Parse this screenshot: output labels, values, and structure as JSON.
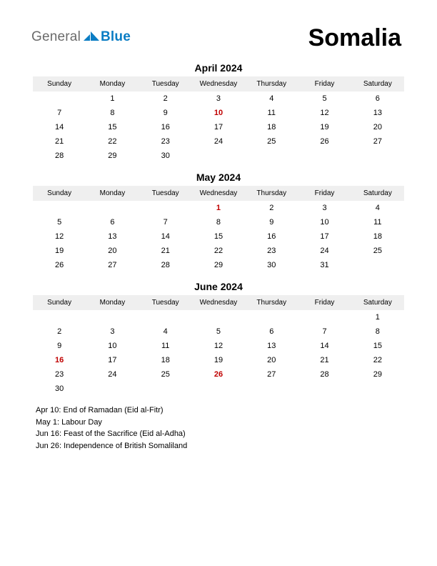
{
  "header": {
    "logo_general": "General",
    "logo_blue": "Blue",
    "country": "Somalia",
    "logo_color_gray": "#6b6b6b",
    "logo_color_blue": "#0b7dc4",
    "logo_arrow_color": "#0b7dc4"
  },
  "weekday_labels": [
    "Sunday",
    "Monday",
    "Tuesday",
    "Wednesday",
    "Thursday",
    "Friday",
    "Saturday"
  ],
  "months": [
    {
      "title": "April 2024",
      "weeks": [
        [
          {
            "d": ""
          },
          {
            "d": "1"
          },
          {
            "d": "2"
          },
          {
            "d": "3"
          },
          {
            "d": "4"
          },
          {
            "d": "5"
          },
          {
            "d": "6"
          }
        ],
        [
          {
            "d": "7"
          },
          {
            "d": "8"
          },
          {
            "d": "9"
          },
          {
            "d": "10",
            "h": true
          },
          {
            "d": "11"
          },
          {
            "d": "12"
          },
          {
            "d": "13"
          }
        ],
        [
          {
            "d": "14"
          },
          {
            "d": "15"
          },
          {
            "d": "16"
          },
          {
            "d": "17"
          },
          {
            "d": "18"
          },
          {
            "d": "19"
          },
          {
            "d": "20"
          }
        ],
        [
          {
            "d": "21"
          },
          {
            "d": "22"
          },
          {
            "d": "23"
          },
          {
            "d": "24"
          },
          {
            "d": "25"
          },
          {
            "d": "26"
          },
          {
            "d": "27"
          }
        ],
        [
          {
            "d": "28"
          },
          {
            "d": "29"
          },
          {
            "d": "30"
          },
          {
            "d": ""
          },
          {
            "d": ""
          },
          {
            "d": ""
          },
          {
            "d": ""
          }
        ]
      ]
    },
    {
      "title": "May 2024",
      "weeks": [
        [
          {
            "d": ""
          },
          {
            "d": ""
          },
          {
            "d": ""
          },
          {
            "d": "1",
            "h": true
          },
          {
            "d": "2"
          },
          {
            "d": "3"
          },
          {
            "d": "4"
          }
        ],
        [
          {
            "d": "5"
          },
          {
            "d": "6"
          },
          {
            "d": "7"
          },
          {
            "d": "8"
          },
          {
            "d": "9"
          },
          {
            "d": "10"
          },
          {
            "d": "11"
          }
        ],
        [
          {
            "d": "12"
          },
          {
            "d": "13"
          },
          {
            "d": "14"
          },
          {
            "d": "15"
          },
          {
            "d": "16"
          },
          {
            "d": "17"
          },
          {
            "d": "18"
          }
        ],
        [
          {
            "d": "19"
          },
          {
            "d": "20"
          },
          {
            "d": "21"
          },
          {
            "d": "22"
          },
          {
            "d": "23"
          },
          {
            "d": "24"
          },
          {
            "d": "25"
          }
        ],
        [
          {
            "d": "26"
          },
          {
            "d": "27"
          },
          {
            "d": "28"
          },
          {
            "d": "29"
          },
          {
            "d": "30"
          },
          {
            "d": "31"
          },
          {
            "d": ""
          }
        ]
      ]
    },
    {
      "title": "June 2024",
      "weeks": [
        [
          {
            "d": ""
          },
          {
            "d": ""
          },
          {
            "d": ""
          },
          {
            "d": ""
          },
          {
            "d": ""
          },
          {
            "d": ""
          },
          {
            "d": "1"
          }
        ],
        [
          {
            "d": "2"
          },
          {
            "d": "3"
          },
          {
            "d": "4"
          },
          {
            "d": "5"
          },
          {
            "d": "6"
          },
          {
            "d": "7"
          },
          {
            "d": "8"
          }
        ],
        [
          {
            "d": "9"
          },
          {
            "d": "10"
          },
          {
            "d": "11"
          },
          {
            "d": "12"
          },
          {
            "d": "13"
          },
          {
            "d": "14"
          },
          {
            "d": "15"
          }
        ],
        [
          {
            "d": "16",
            "h": true
          },
          {
            "d": "17"
          },
          {
            "d": "18"
          },
          {
            "d": "19"
          },
          {
            "d": "20"
          },
          {
            "d": "21"
          },
          {
            "d": "22"
          }
        ],
        [
          {
            "d": "23"
          },
          {
            "d": "24"
          },
          {
            "d": "25"
          },
          {
            "d": "26",
            "h": true
          },
          {
            "d": "27"
          },
          {
            "d": "28"
          },
          {
            "d": "29"
          }
        ],
        [
          {
            "d": "30"
          },
          {
            "d": ""
          },
          {
            "d": ""
          },
          {
            "d": ""
          },
          {
            "d": ""
          },
          {
            "d": ""
          },
          {
            "d": ""
          }
        ]
      ]
    }
  ],
  "holidays_list": [
    "Apr 10: End of Ramadan (Eid al-Fitr)",
    "May 1: Labour Day",
    "Jun 16: Feast of the Sacrifice (Eid al-Adha)",
    "Jun 26: Independence of British Somaliland"
  ],
  "style": {
    "header_bg": "#efefef",
    "holiday_color": "#c00000",
    "text_color": "#000000",
    "page_bg": "#ffffff",
    "header_font_size_pt": 10,
    "cell_font_size_pt": 11,
    "month_title_font_size_pt": 14,
    "country_font_size_pt": 34
  }
}
